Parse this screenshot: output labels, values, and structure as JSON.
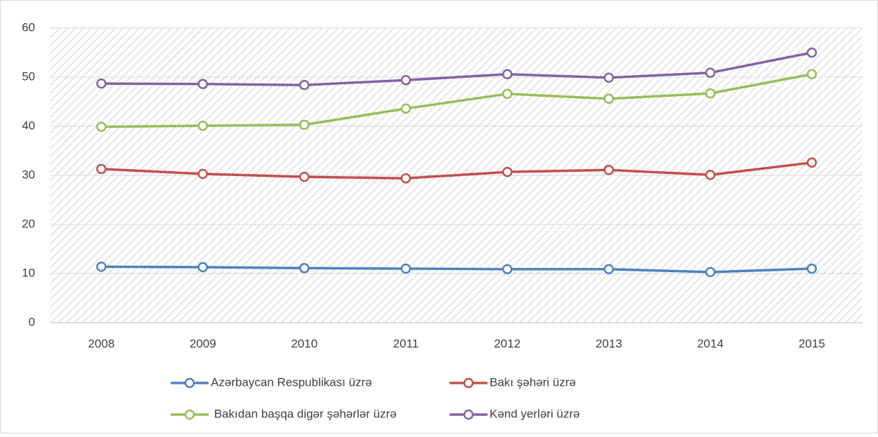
{
  "chart_data": {
    "type": "line",
    "categories": [
      "2008",
      "2009",
      "2010",
      "2011",
      "2012",
      "2013",
      "2014",
      "2015"
    ],
    "series": [
      {
        "name": "Azərbaycan Respublikası üzrə",
        "color": "#4f81bd",
        "values": [
          11.4,
          11.3,
          11.1,
          11.0,
          10.9,
          10.9,
          10.3,
          11.0
        ]
      },
      {
        "name": "Bakı şəhəri üzrə",
        "color": "#c0504d",
        "values": [
          31.3,
          30.3,
          29.7,
          29.4,
          30.7,
          31.1,
          30.1,
          32.6
        ]
      },
      {
        "name": " Bakıdan başqa digər şəhərlər üzrə",
        "color": "#9bbb59",
        "values": [
          39.9,
          40.1,
          40.3,
          43.6,
          46.6,
          45.6,
          46.7,
          50.6
        ]
      },
      {
        "name": "Kənd yerləri üzrə",
        "color": "#8064a2",
        "values": [
          48.7,
          48.6,
          48.4,
          49.4,
          50.6,
          49.9,
          50.9,
          55.0
        ]
      }
    ],
    "ylim": [
      0,
      60
    ],
    "yticks": [
      0,
      10,
      20,
      30,
      40,
      50,
      60
    ],
    "grid": true,
    "legend": "bottom"
  }
}
